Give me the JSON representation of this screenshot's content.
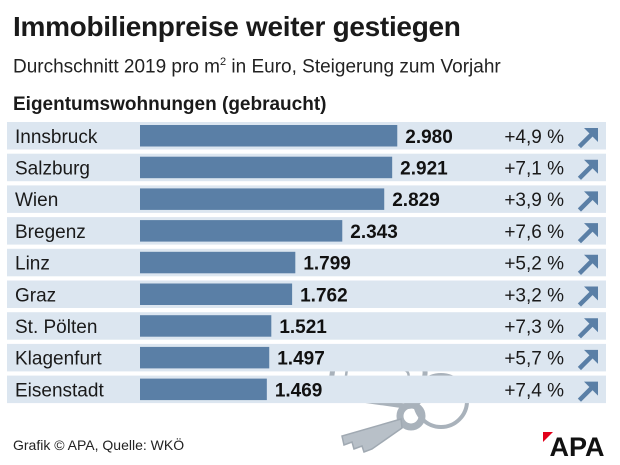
{
  "header": {
    "title": "Immobilienpreise weiter gestiegen",
    "subtitle_pre": "Durchschnitt 2019 pro m",
    "subtitle_sup": "2",
    "subtitle_post": " in Euro, Steigerung zum Vorjahr",
    "section": "Eigentumswohnungen (gebraucht)"
  },
  "chart_data": {
    "type": "bar",
    "orientation": "horizontal",
    "title": "Immobilienpreise weiter gestiegen",
    "subtitle": "Durchschnitt 2019 pro m2 in Euro, Steigerung zum Vorjahr",
    "categories": [
      "Innsbruck",
      "Salzburg",
      "Wien",
      "Bregenz",
      "Linz",
      "Graz",
      "St. Pölten",
      "Klagenfurt",
      "Eisenstadt"
    ],
    "values": [
      2980,
      2921,
      2829,
      2343,
      1799,
      1762,
      1521,
      1497,
      1469
    ],
    "value_labels": [
      "2.980",
      "2.921",
      "2.829",
      "2.343",
      "1.799",
      "1.762",
      "1.521",
      "1.497",
      "1.469"
    ],
    "changes": [
      "+4,9 %",
      "+7,1 %",
      "+3,9 %",
      "+7,6 %",
      "+5,2 %",
      "+3,2 %",
      "+7,3 %",
      "+5,7 %",
      "+7,4 %"
    ],
    "unit": "Euro pro m2",
    "xlim": [
      0,
      3000
    ],
    "colors": {
      "bar": "#5a7fa6",
      "stripe": "#dce6f0",
      "arrow": "#5a7fa6"
    }
  },
  "footer": {
    "source": "Grafik © APA, Quelle: WKÖ",
    "logo": "APA",
    "logo_color": "#e2001a"
  }
}
